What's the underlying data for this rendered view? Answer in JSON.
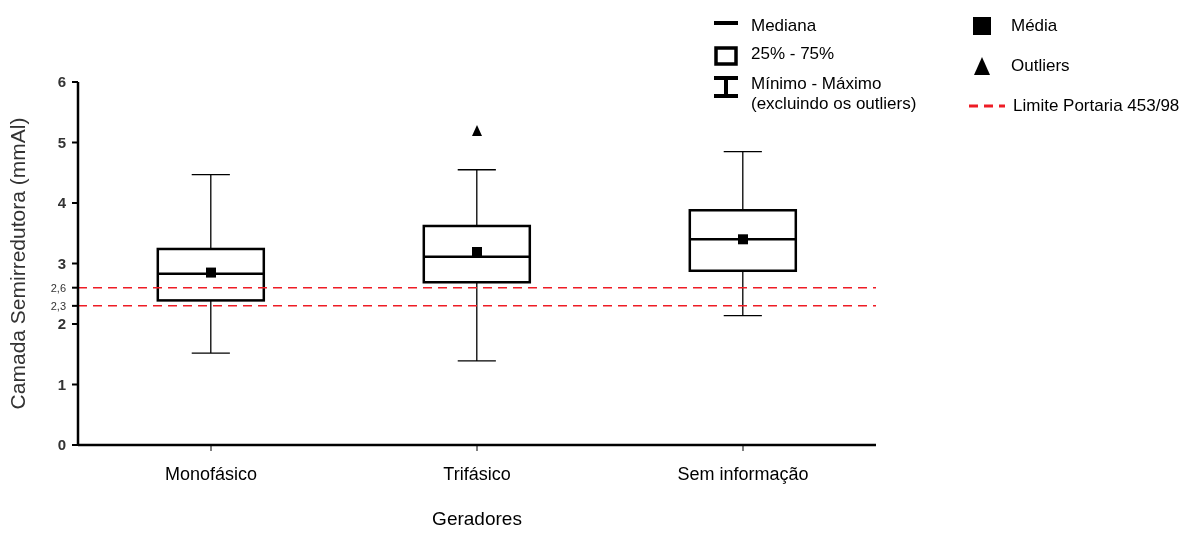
{
  "chart_data": {
    "type": "box",
    "xlabel": "Geradores",
    "ylabel": "Camada Semirredutora (mmAl)",
    "categories": [
      "Monofásico",
      "Trifásico",
      "Sem informação"
    ],
    "boxes": [
      {
        "low": 1.52,
        "q1": 2.39,
        "median": 2.83,
        "q3": 3.24,
        "high": 4.47,
        "mean": 2.85
      },
      {
        "low": 1.39,
        "q1": 2.69,
        "median": 3.11,
        "q3": 3.62,
        "high": 4.55,
        "mean": 3.19,
        "outliers": [
          5.19
        ]
      },
      {
        "low": 2.14,
        "q1": 2.88,
        "median": 3.4,
        "q3": 3.88,
        "high": 4.85,
        "mean": 3.4
      }
    ],
    "ylim": [
      0,
      6
    ],
    "yticks": [
      0,
      1,
      2,
      {
        "value": 2.3,
        "label": "2,3"
      },
      {
        "value": 2.6,
        "label": "2,6"
      },
      3,
      4,
      5,
      6
    ],
    "ref_lines": [
      {
        "axis": "y",
        "value": 2.6,
        "label": "Limite Portaria 453/98",
        "color": "#ee1c25",
        "line_style": "dashed"
      },
      {
        "axis": "y",
        "value": 2.3,
        "color": "#ee1c25",
        "line_style": "dashed"
      }
    ],
    "annotations": [
      "Mediana",
      "25% - 75%",
      "Mínimo - Máximo (excluindo os outliers)",
      "Média",
      "Outliers"
    ],
    "legend": "top right"
  }
}
